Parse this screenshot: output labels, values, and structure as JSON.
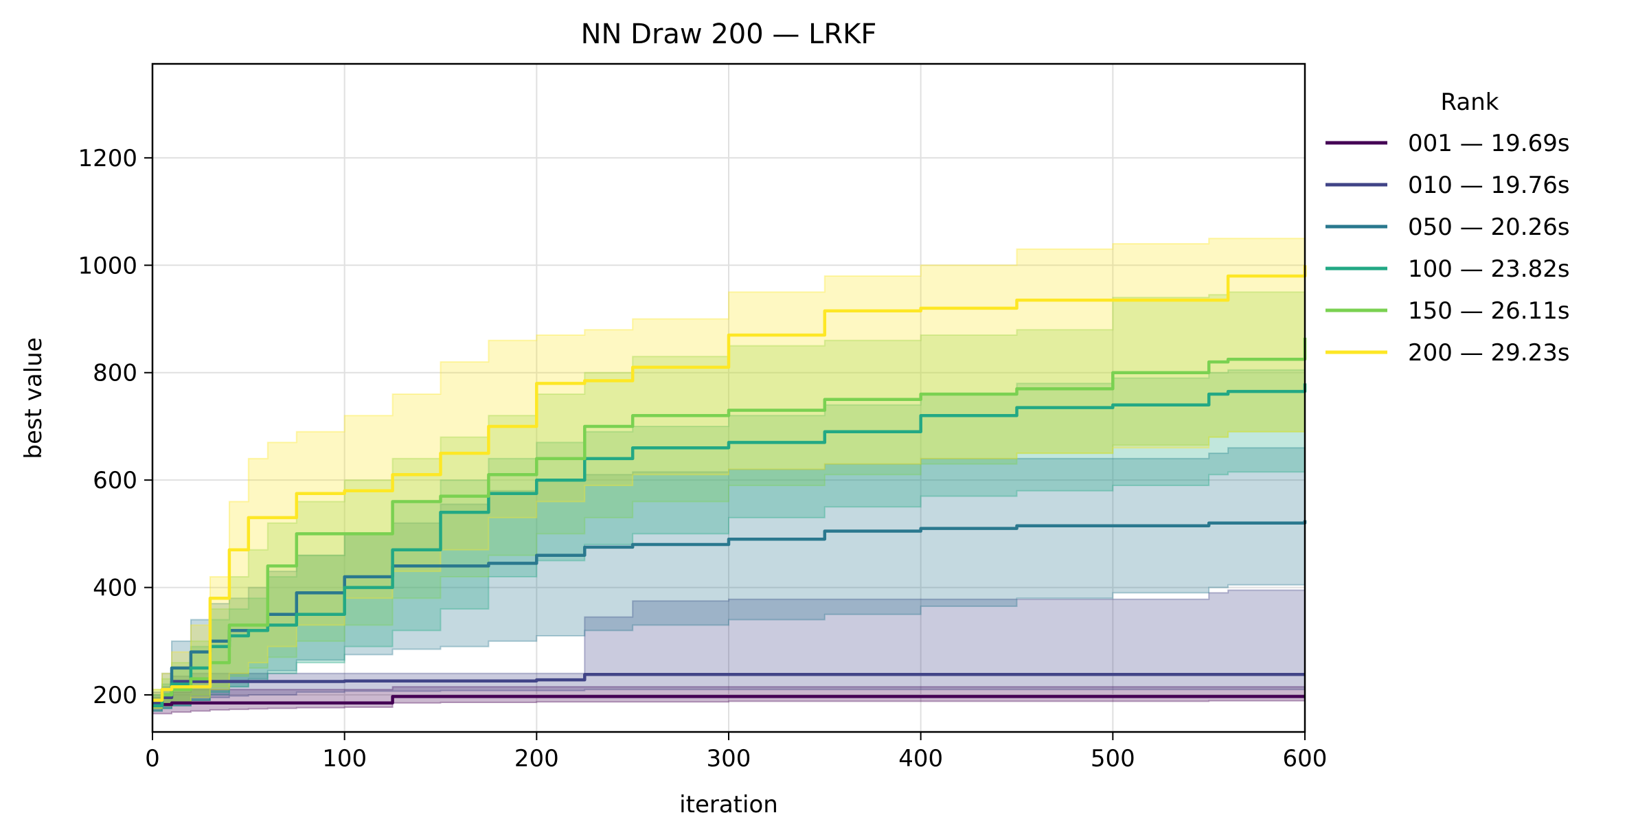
{
  "chart_data": {
    "type": "line",
    "title": "NN Draw 200 — LRKF",
    "xlabel": "iteration",
    "ylabel": "best value",
    "xlim": [
      0,
      600
    ],
    "ylim": [
      131,
      1375
    ],
    "xticks": [
      0,
      100,
      200,
      300,
      400,
      500,
      600
    ],
    "yticks": [
      200,
      400,
      600,
      800,
      1000,
      1200
    ],
    "grid": true,
    "legend": {
      "title": "Rank",
      "position": "outside-right",
      "entries": [
        "001 — 19.69s",
        "010 — 19.76s",
        "050 — 20.26s",
        "100 — 23.82s",
        "150 — 26.11s",
        "200 — 29.23s"
      ]
    },
    "x": [
      0,
      5,
      10,
      20,
      30,
      40,
      50,
      60,
      75,
      100,
      125,
      150,
      175,
      200,
      225,
      250,
      300,
      350,
      400,
      450,
      500,
      550,
      560,
      600
    ],
    "series": [
      {
        "name": "001 — 19.69s",
        "color": "#440154",
        "values": [
          180,
          182,
          185,
          185,
          185,
          185,
          185,
          185,
          185,
          185,
          197,
          197,
          197,
          197,
          197,
          197,
          197,
          197,
          197,
          197,
          197,
          197,
          197,
          197
        ],
        "lower": [
          165,
          165,
          168,
          170,
          172,
          173,
          174,
          175,
          176,
          177,
          185,
          186,
          186,
          187,
          187,
          187,
          188,
          188,
          188,
          188,
          188,
          189,
          189,
          170
        ],
        "upper": [
          195,
          200,
          205,
          210,
          210,
          210,
          210,
          210,
          210,
          210,
          215,
          215,
          215,
          215,
          215,
          215,
          215,
          215,
          215,
          215,
          215,
          215,
          215,
          215
        ]
      },
      {
        "name": "010 — 19.76s",
        "color": "#414487",
        "values": [
          185,
          195,
          225,
          225,
          225,
          225,
          225,
          225,
          225,
          226,
          226,
          226,
          226,
          228,
          238,
          238,
          238,
          238,
          238,
          238,
          238,
          238,
          238,
          238
        ],
        "lower": [
          170,
          175,
          180,
          190,
          195,
          198,
          200,
          200,
          205,
          207,
          207,
          208,
          208,
          208,
          210,
          210,
          210,
          210,
          210,
          210,
          210,
          210,
          210,
          210
        ],
        "upper": [
          205,
          215,
          235,
          240,
          240,
          240,
          240,
          240,
          240,
          240,
          240,
          240,
          240,
          240,
          345,
          375,
          378,
          378,
          378,
          378,
          378,
          390,
          395,
          400
        ]
      },
      {
        "name": "050 — 20.26s",
        "color": "#2a788e",
        "values": [
          180,
          210,
          250,
          280,
          300,
          320,
          320,
          350,
          390,
          420,
          440,
          440,
          445,
          460,
          475,
          480,
          490,
          505,
          510,
          515,
          515,
          520,
          520,
          525
        ],
        "lower": [
          170,
          175,
          180,
          190,
          200,
          215,
          230,
          245,
          265,
          275,
          285,
          290,
          300,
          310,
          320,
          330,
          340,
          350,
          365,
          380,
          390,
          400,
          405,
          420
        ],
        "upper": [
          200,
          240,
          300,
          340,
          370,
          380,
          400,
          430,
          460,
          500,
          520,
          555,
          580,
          600,
          610,
          615,
          620,
          630,
          640,
          640,
          640,
          650,
          660,
          690
        ]
      },
      {
        "name": "100 — 23.82s",
        "color": "#22a884",
        "values": [
          180,
          200,
          220,
          250,
          290,
          310,
          320,
          330,
          350,
          400,
          470,
          540,
          575,
          600,
          640,
          660,
          670,
          690,
          720,
          735,
          740,
          760,
          765,
          780
        ],
        "lower": [
          170,
          175,
          180,
          190,
          205,
          215,
          225,
          240,
          260,
          290,
          320,
          360,
          420,
          450,
          480,
          500,
          530,
          550,
          570,
          580,
          590,
          610,
          615,
          640
        ],
        "upper": [
          200,
          220,
          250,
          290,
          340,
          360,
          380,
          420,
          460,
          500,
          560,
          600,
          640,
          670,
          690,
          700,
          720,
          740,
          760,
          780,
          790,
          800,
          805,
          820
        ]
      },
      {
        "name": "150 — 26.11s",
        "color": "#7ad151",
        "values": [
          190,
          200,
          210,
          230,
          260,
          330,
          330,
          440,
          500,
          500,
          560,
          570,
          610,
          640,
          700,
          720,
          730,
          750,
          760,
          770,
          800,
          820,
          825,
          865
        ],
        "lower": [
          175,
          180,
          185,
          200,
          215,
          235,
          250,
          270,
          300,
          330,
          380,
          420,
          460,
          500,
          530,
          560,
          590,
          610,
          630,
          650,
          665,
          680,
          690,
          720
        ],
        "upper": [
          210,
          230,
          260,
          300,
          360,
          420,
          470,
          520,
          560,
          600,
          640,
          680,
          720,
          760,
          800,
          830,
          850,
          860,
          870,
          880,
          940,
          945,
          950,
          965
        ]
      },
      {
        "name": "200 — 29.23s",
        "color": "#fde725",
        "values": [
          190,
          210,
          215,
          215,
          380,
          470,
          530,
          530,
          575,
          580,
          610,
          650,
          700,
          780,
          785,
          810,
          870,
          915,
          920,
          935,
          935,
          935,
          980,
          1000
        ],
        "lower": [
          175,
          180,
          185,
          195,
          210,
          240,
          260,
          290,
          330,
          380,
          430,
          470,
          530,
          560,
          590,
          610,
          620,
          630,
          640,
          650,
          660,
          680,
          690,
          720
        ],
        "upper": [
          210,
          240,
          280,
          330,
          420,
          560,
          640,
          670,
          690,
          720,
          760,
          820,
          860,
          870,
          880,
          900,
          950,
          980,
          1000,
          1030,
          1040,
          1050,
          1050,
          1050
        ]
      }
    ]
  }
}
